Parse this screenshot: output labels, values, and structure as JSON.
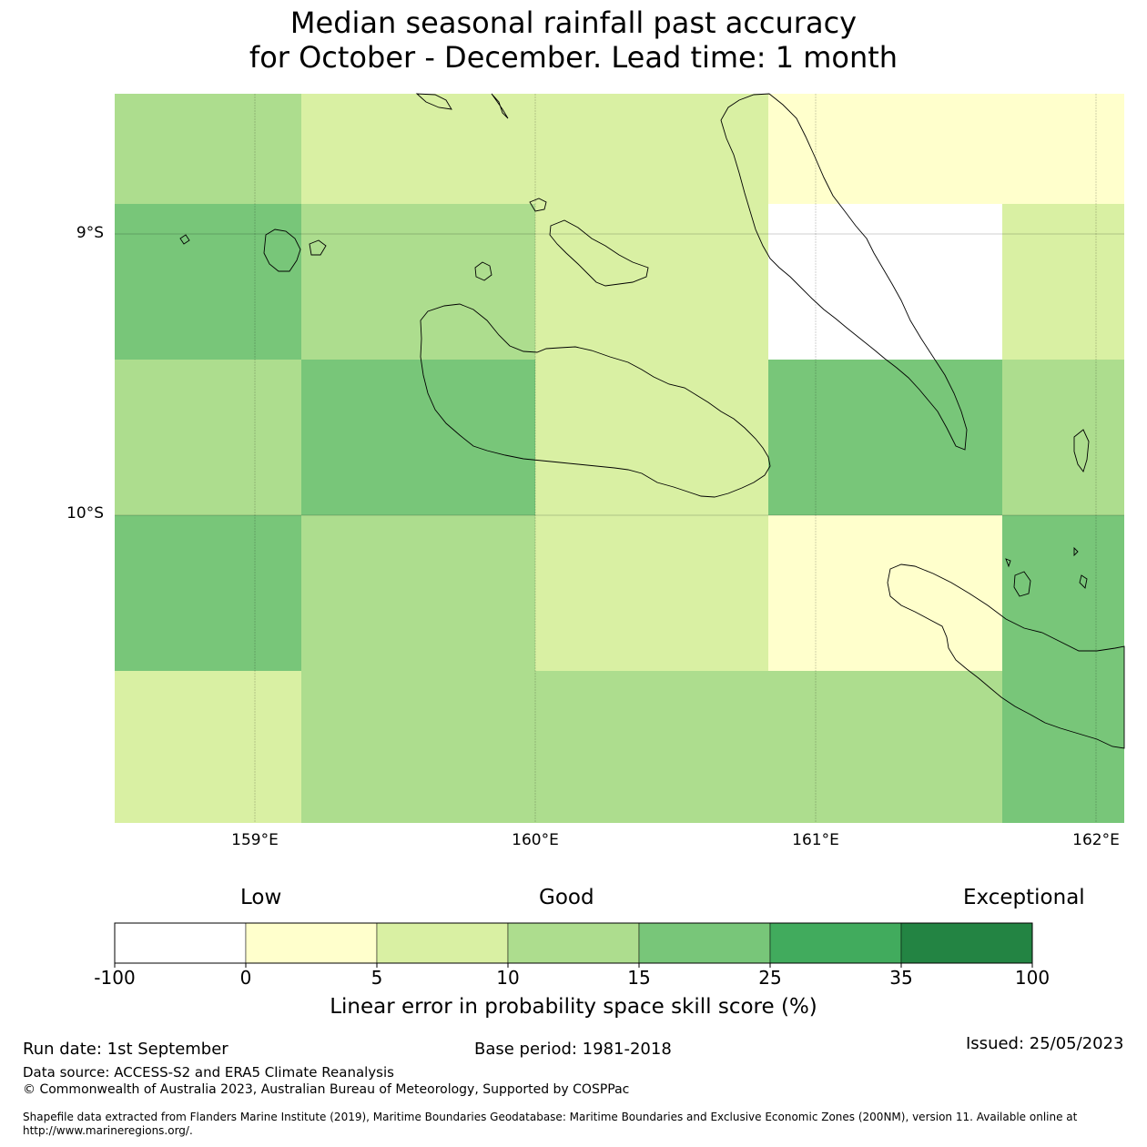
{
  "title": {
    "line1": "Median seasonal rainfall past accuracy",
    "line2": "for October - December. Lead time: 1 month"
  },
  "map": {
    "lat_labels": [
      "9°S",
      "10°S"
    ],
    "lon_labels": [
      "159°E",
      "160°E",
      "161°E",
      "162°E"
    ],
    "lon_range": [
      158.5,
      162.1
    ],
    "lat_range": [
      -8.5,
      -11.1
    ],
    "skill_grid": {
      "col_edges_lon": [
        158.5,
        159.17,
        160.0,
        160.83,
        161.67,
        162.1
      ],
      "row_edges_lat": [
        -8.5,
        -8.89,
        -9.44,
        -10.0,
        -10.56,
        -11.1
      ],
      "bins": [
        [
          3,
          2,
          2,
          1,
          1
        ],
        [
          4,
          3,
          2,
          0,
          2
        ],
        [
          3,
          4,
          2,
          4,
          3
        ],
        [
          4,
          3,
          2,
          1,
          4
        ],
        [
          2,
          3,
          3,
          3,
          4
        ]
      ],
      "bins_note_row5_split": true
    }
  },
  "legend": {
    "categories": [
      "Low",
      "Good",
      "Exceptional"
    ],
    "tick_labels": [
      "-100",
      "0",
      "5",
      "10",
      "15",
      "25",
      "35",
      "100"
    ],
    "colors": [
      "#ffffff",
      "#ffffcc",
      "#d9f0a3",
      "#addd8e",
      "#78c679",
      "#41ab5d",
      "#238443"
    ],
    "title": "Linear error in probability space skill score (%)"
  },
  "footer": {
    "run_date": "Run date: 1st September",
    "base_period": "Base period: 1981-2018",
    "issued": "Issued: 25/05/2023",
    "data_source": "Data source: ACCESS-S2 and ERA5 Climate Reanalysis",
    "copyright": "© Commonwealth of Australia 2023, Australian Bureau of Meteorology, Supported by COSPPac",
    "shapefile1": "Shapefile data extracted from Flanders Marine Institute (2019), Maritime Boundaries Geodatabase: Maritime Boundaries and Exclusive Economic Zones (200NM), version 11. Available online at",
    "shapefile2": "http://www.marineregions.org/."
  }
}
